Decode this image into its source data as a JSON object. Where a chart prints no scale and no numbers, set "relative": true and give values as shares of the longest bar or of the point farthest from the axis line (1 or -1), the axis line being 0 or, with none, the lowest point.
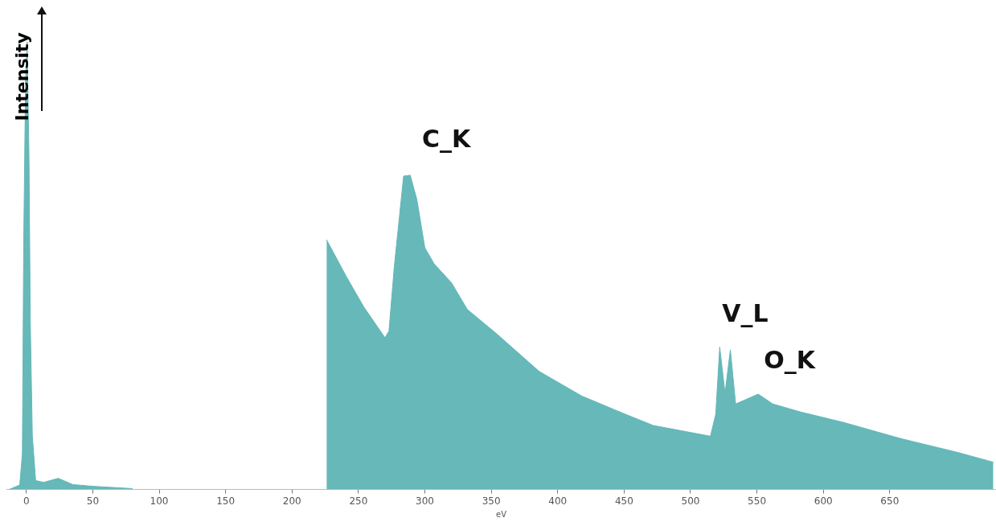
{
  "chart_data": {
    "type": "area",
    "relative": true,
    "xlabel": "eV",
    "ylabel": "Intensity",
    "xlim": [
      -15,
      730
    ],
    "xticks": [
      0,
      50,
      100,
      150,
      200,
      250,
      300,
      350,
      400,
      450,
      500,
      550,
      600,
      650
    ],
    "annotations": [
      "C_K",
      "V_L",
      "O_K"
    ],
    "series": [
      {
        "color": "#66b8b9",
        "x": [
          -13,
          -5,
          -3,
          -2,
          -0.6,
          0.6,
          2,
          3,
          4.5,
          7,
          13,
          24,
          35,
          51,
          80
        ],
        "values": [
          0,
          0.01,
          0.08,
          0.55,
          0.91,
          1,
          0.74,
          0.37,
          0.12,
          0.02,
          0.016,
          0.025,
          0.011,
          0.007,
          0.002
        ]
      },
      {
        "color": "#66b8b9",
        "x": [
          226,
          241,
          254,
          270,
          273,
          277,
          284,
          289,
          294,
          300,
          307,
          320,
          332,
          354,
          386,
          418,
          451,
          472,
          515,
          519,
          522,
          526,
          530,
          534,
          551,
          562,
          583,
          615,
          658,
          701,
          728
        ],
        "values": [
          0.558,
          0.475,
          0.408,
          0.339,
          0.354,
          0.498,
          0.7,
          0.702,
          0.648,
          0.54,
          0.504,
          0.462,
          0.402,
          0.348,
          0.264,
          0.209,
          0.168,
          0.143,
          0.119,
          0.168,
          0.318,
          0.215,
          0.312,
          0.191,
          0.213,
          0.191,
          0.173,
          0.15,
          0.114,
          0.083,
          0.061
        ]
      }
    ]
  }
}
